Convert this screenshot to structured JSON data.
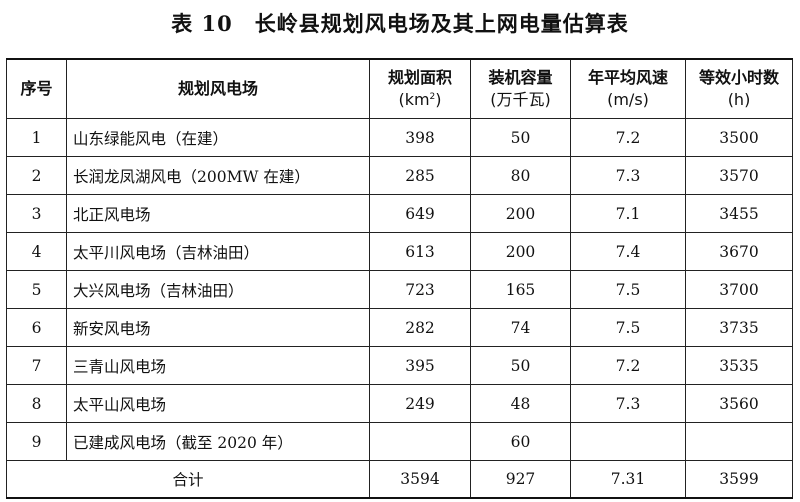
{
  "caption": {
    "number": "表 10",
    "title": "长岭县规划风电场及其上网电量估算表"
  },
  "table": {
    "headers": [
      {
        "title": "序号",
        "unit": ""
      },
      {
        "title": "规划风电场",
        "unit": ""
      },
      {
        "title": "规划面积",
        "unit": "(km",
        "unit_sup": "2",
        "unit_tail": ")"
      },
      {
        "title": "装机容量",
        "unit": "(万千瓦)"
      },
      {
        "title": "年平均风速",
        "unit": "(m/s)"
      },
      {
        "title": "等效小时数",
        "unit": "(h)"
      }
    ],
    "rows": [
      {
        "no": "1",
        "name": "山东绿能风电（在建）",
        "area": "398",
        "capacity": "50",
        "wind": "7.2",
        "hours": "3500"
      },
      {
        "no": "2",
        "name": "长润龙凤湖风电（200MW 在建）",
        "area": "285",
        "capacity": "80",
        "wind": "7.3",
        "hours": "3570"
      },
      {
        "no": "3",
        "name": "北正风电场",
        "area": "649",
        "capacity": "200",
        "wind": "7.1",
        "hours": "3455"
      },
      {
        "no": "4",
        "name": "太平川风电场（吉林油田）",
        "area": "613",
        "capacity": "200",
        "wind": "7.4",
        "hours": "3670"
      },
      {
        "no": "5",
        "name": "大兴风电场（吉林油田）",
        "area": "723",
        "capacity": "165",
        "wind": "7.5",
        "hours": "3700"
      },
      {
        "no": "6",
        "name": "新安风电场",
        "area": "282",
        "capacity": "74",
        "wind": "7.5",
        "hours": "3735"
      },
      {
        "no": "7",
        "name": "三青山风电场",
        "area": "395",
        "capacity": "50",
        "wind": "7.2",
        "hours": "3535"
      },
      {
        "no": "8",
        "name": "太平山风电场",
        "area": "249",
        "capacity": "48",
        "wind": "7.3",
        "hours": "3560"
      },
      {
        "no": "9",
        "name": "已建成风电场（截至 2020 年）",
        "area": "",
        "capacity": "60",
        "wind": "",
        "hours": ""
      }
    ],
    "total": {
      "label": "合计",
      "area": "3594",
      "capacity": "927",
      "wind": "7.31",
      "hours": "3599"
    }
  }
}
